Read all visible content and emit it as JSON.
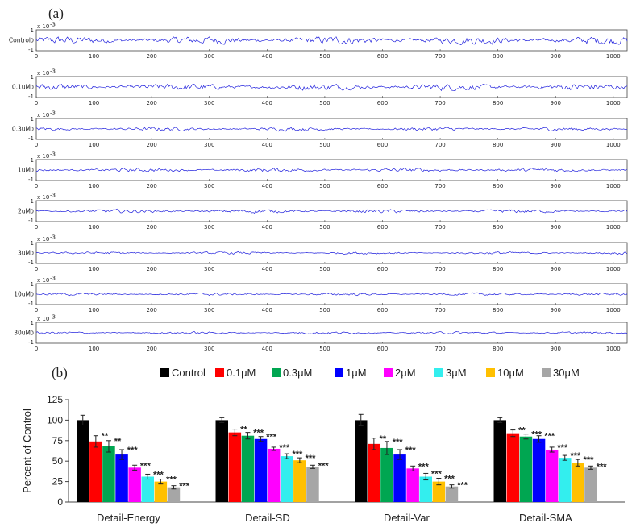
{
  "figure": {
    "panel_a_label": "(a)",
    "panel_b_label": "(b)"
  },
  "chart_data": [
    {
      "type": "line",
      "panel": "(a)",
      "series_color": "#2222dd",
      "x_ticks": [
        0,
        100,
        200,
        300,
        400,
        500,
        600,
        700,
        800,
        900,
        1000
      ],
      "xlim": [
        0,
        1024
      ],
      "y_ticks": [
        "1",
        "0",
        "-1"
      ],
      "y_exponent_label": "x 10",
      "y_exponent": "-3",
      "ylim": [
        -1,
        1
      ],
      "channels": [
        {
          "name": "Control",
          "amplitude": 0.28
        },
        {
          "name": "0.1uM",
          "amplitude": 0.24
        },
        {
          "name": "0.3uM",
          "amplitude": 0.13
        },
        {
          "name": "1uM",
          "amplitude": 0.14
        },
        {
          "name": "2uM",
          "amplitude": 0.13
        },
        {
          "name": "3uM",
          "amplitude": 0.09
        },
        {
          "name": "10uM",
          "amplitude": 0.09
        },
        {
          "name": "30uM",
          "amplitude": 0.08
        }
      ]
    },
    {
      "type": "bar",
      "panel": "(b)",
      "ylabel": "Percent of Control",
      "ylim": [
        0,
        125
      ],
      "y_ticks": [
        0,
        25,
        50,
        75,
        100,
        125
      ],
      "categories": [
        "Detail-Energy",
        "Detail-SD",
        "Detail-Var",
        "Detail-SMA"
      ],
      "legend_position": "top",
      "series": [
        {
          "name": "Control",
          "color": "#000000",
          "values": [
            100,
            100,
            100,
            100
          ],
          "errors": [
            6,
            3,
            7,
            3
          ],
          "stars": [
            "",
            "",
            "",
            ""
          ]
        },
        {
          "name": "0.1μM",
          "color": "#ff0000",
          "values": [
            74,
            85,
            71,
            84
          ],
          "errors": [
            7,
            4,
            7,
            4
          ],
          "stars": [
            "**",
            "**",
            "**",
            "**"
          ]
        },
        {
          "name": "0.3μM",
          "color": "#00a651",
          "values": [
            68,
            81,
            66,
            80
          ],
          "errors": [
            7,
            4,
            8,
            3
          ],
          "stars": [
            "**",
            "***",
            "***",
            "***"
          ]
        },
        {
          "name": "1μM",
          "color": "#0000ff",
          "values": [
            58,
            77,
            58,
            77
          ],
          "errors": [
            6,
            3,
            6,
            4
          ],
          "stars": [
            "***",
            "***",
            "***",
            "***"
          ]
        },
        {
          "name": "2μM",
          "color": "#ff00ff",
          "values": [
            42,
            65,
            41,
            64
          ],
          "errors": [
            3,
            2,
            3,
            3
          ],
          "stars": [
            "***",
            "***",
            "***",
            "***"
          ]
        },
        {
          "name": "3μM",
          "color": "#33eeee",
          "values": [
            31,
            56,
            31,
            54
          ],
          "errors": [
            3,
            3,
            4,
            3
          ],
          "stars": [
            "***",
            "***",
            "***",
            "***"
          ]
        },
        {
          "name": "10μM",
          "color": "#ffc000",
          "values": [
            25,
            51,
            25,
            48
          ],
          "errors": [
            3,
            3,
            4,
            4
          ],
          "stars": [
            "***",
            "***",
            "***",
            "***"
          ]
        },
        {
          "name": "30μM",
          "color": "#a6a6a6",
          "values": [
            18,
            43,
            19,
            42
          ],
          "errors": [
            2,
            2,
            2,
            2
          ],
          "stars": [
            "***",
            "***",
            "***",
            "***"
          ]
        }
      ]
    }
  ]
}
